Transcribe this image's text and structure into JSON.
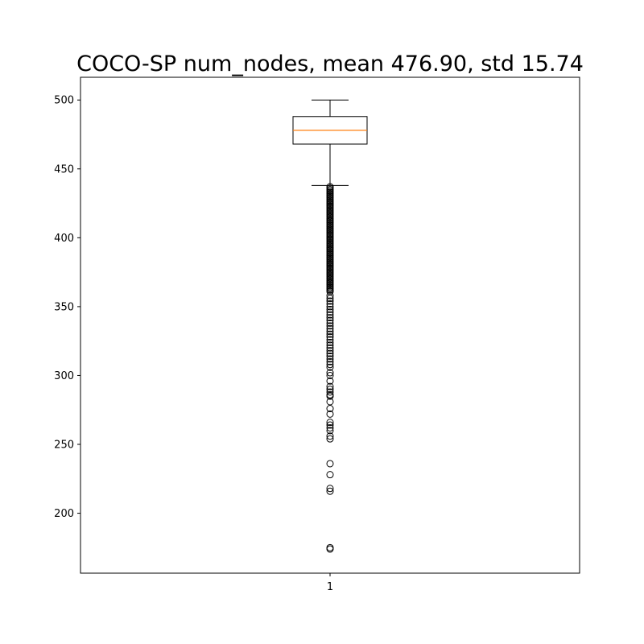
{
  "chart_data": {
    "type": "box",
    "title": "COCO-SP num_nodes, mean 476.90, std 15.74",
    "xlabel": "",
    "ylabel": "",
    "categories": [
      "1"
    ],
    "ylim": [
      156.5,
      516.5
    ],
    "yticks": [
      200,
      250,
      300,
      350,
      400,
      450,
      500
    ],
    "grid": false,
    "box": {
      "whisker_low": 438,
      "q1": 468,
      "median": 478,
      "q3": 488,
      "whisker_high": 500
    },
    "outliers": [
      437,
      436,
      435,
      434,
      433,
      432,
      431,
      430,
      429,
      428,
      427,
      426,
      425,
      424,
      423,
      422,
      421,
      420,
      419,
      418,
      417,
      416,
      415,
      414,
      413,
      412,
      411,
      410,
      409,
      408,
      407,
      406,
      405,
      404,
      403,
      402,
      401,
      400,
      399,
      398,
      397,
      396,
      395,
      394,
      393,
      392,
      391,
      390,
      389,
      388,
      387,
      386,
      385,
      384,
      383,
      382,
      381,
      380,
      379,
      378,
      377,
      376,
      375,
      374,
      373,
      372,
      371,
      370,
      369,
      368,
      367,
      366,
      365,
      364,
      363,
      362,
      361,
      358,
      356,
      354,
      352,
      350,
      348,
      346,
      344,
      342,
      340,
      338,
      336,
      334,
      332,
      330,
      328,
      326,
      324,
      322,
      320,
      318,
      316,
      314,
      312,
      310,
      308,
      306,
      302,
      300,
      296,
      292,
      290,
      288,
      286,
      285,
      281,
      276,
      272,
      266,
      264,
      262,
      260,
      256,
      254,
      236,
      228,
      218,
      216,
      175,
      174
    ],
    "colors": {
      "box": "#000000",
      "median": "#ff7f0e",
      "outlier": "#000000"
    }
  }
}
